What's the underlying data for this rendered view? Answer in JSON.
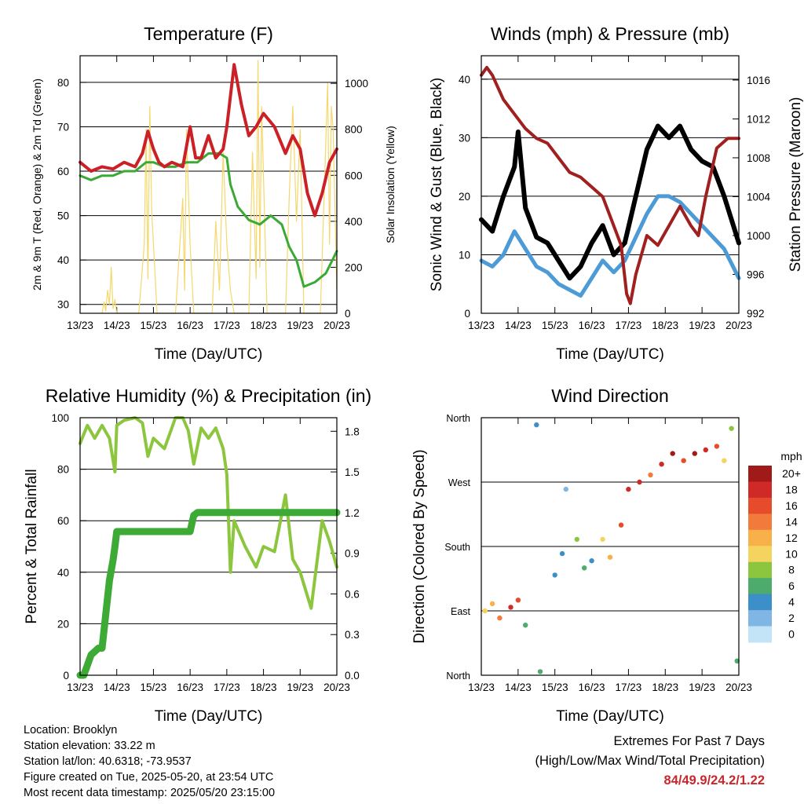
{
  "time_ticks": [
    "13/23",
    "14/23",
    "15/23",
    "16/23",
    "17/23",
    "18/23",
    "19/23",
    "20/23"
  ],
  "colors": {
    "temp": "#cc2027",
    "dew": "#3aaa35",
    "solar": "#f5d76b",
    "gust": "#000000",
    "wind": "#4c9bd6",
    "pressure": "#a01f1f",
    "rh": "#8cc63f",
    "precip": "#3daa36"
  },
  "chart_data": [
    {
      "id": "temperature",
      "type": "line",
      "title": "Temperature (F)",
      "xlabel": "Time (Day/UTC)",
      "ylabel": "2m & 9m T (Red, Orange) & 2m Td (Green)",
      "ylabel_right": "Solar Insolation (Yellow)",
      "ylim": [
        28,
        86
      ],
      "yticks": [
        30,
        40,
        50,
        60,
        70,
        80
      ],
      "ylim_right": [
        0,
        1120
      ],
      "yticks_right": [
        0,
        200,
        400,
        600,
        800,
        1000
      ],
      "series": [
        {
          "key": "temperature",
          "x": [
            0,
            0.3,
            0.6,
            0.9,
            1.2,
            1.5,
            1.7,
            1.85,
            2.0,
            2.15,
            2.3,
            2.5,
            2.8,
            3.0,
            3.15,
            3.3,
            3.5,
            3.7,
            3.9,
            4.0,
            4.2,
            4.4,
            4.6,
            4.8,
            5.0,
            5.3,
            5.6,
            5.8,
            6.0,
            6.2,
            6.4,
            6.6,
            6.8,
            7.0
          ],
          "y": [
            62,
            60,
            61,
            60.5,
            62,
            61,
            64,
            69,
            65,
            62,
            61,
            62,
            61,
            70,
            63,
            63,
            68,
            63,
            65,
            70,
            84,
            75,
            68,
            70,
            73,
            70,
            64,
            68,
            65,
            55,
            50,
            55,
            62,
            65
          ]
        },
        {
          "key": "dewpoint",
          "x": [
            0,
            0.3,
            0.6,
            0.9,
            1.2,
            1.5,
            1.8,
            2.0,
            2.3,
            2.6,
            2.9,
            3.2,
            3.5,
            3.8,
            4.0,
            4.1,
            4.3,
            4.6,
            4.9,
            5.2,
            5.5,
            5.7,
            5.9,
            6.1,
            6.4,
            6.7,
            7.0
          ],
          "y": [
            59,
            58,
            59,
            59,
            60,
            60,
            62,
            62,
            61,
            61,
            62,
            62,
            64,
            64,
            63,
            57,
            52,
            49,
            48,
            50,
            48,
            43,
            40,
            34,
            35,
            37,
            42
          ]
        },
        {
          "key": "solar",
          "axis": "right",
          "x": [
            0.6,
            0.65,
            0.7,
            0.75,
            0.8,
            0.85,
            0.9,
            0.95,
            1.0,
            1.6,
            1.75,
            1.8,
            1.85,
            1.9,
            1.95,
            2.1,
            2.6,
            2.8,
            2.85,
            2.9,
            3.0,
            3.1,
            3.6,
            3.7,
            3.8,
            3.9,
            4.0,
            4.1,
            4.2,
            4.6,
            4.7,
            4.8,
            4.85,
            4.9,
            4.95,
            5.1,
            5.6,
            5.7,
            5.8,
            5.9,
            6.0,
            6.1,
            6.55,
            6.65,
            6.75,
            6.8,
            6.85,
            6.9,
            7.0
          ],
          "y": [
            0,
            50,
            10,
            100,
            40,
            200,
            20,
            60,
            0,
            0,
            300,
            800,
            150,
            900,
            450,
            0,
            0,
            500,
            100,
            800,
            300,
            0,
            0,
            400,
            100,
            700,
            300,
            100,
            0,
            0,
            700,
            150,
            1100,
            200,
            900,
            0,
            0,
            500,
            900,
            400,
            800,
            0,
            0,
            500,
            1000,
            300,
            900,
            800,
            100
          ]
        }
      ]
    },
    {
      "id": "winds",
      "type": "line",
      "title": "Winds (mph) & Pressure (mb)",
      "xlabel": "Time (Day/UTC)",
      "ylabel": "Sonic Wind & Gust (Blue, Black)",
      "ylabel_right": "Station Pressure (Maroon)",
      "ylim": [
        0,
        44
      ],
      "yticks": [
        0,
        10,
        20,
        30,
        40
      ],
      "ylim_right": [
        992,
        1018.5
      ],
      "yticks_right": [
        992,
        996,
        1000,
        1004,
        1008,
        1012,
        1016
      ],
      "series": [
        {
          "key": "gust",
          "x": [
            0,
            0.3,
            0.6,
            0.9,
            1.0,
            1.2,
            1.5,
            1.8,
            2.1,
            2.4,
            2.7,
            3.0,
            3.3,
            3.6,
            3.9,
            4.2,
            4.5,
            4.8,
            5.1,
            5.4,
            5.7,
            6.0,
            6.3,
            6.6,
            7.0
          ],
          "y": [
            16,
            14,
            20,
            25,
            31,
            18,
            13,
            12,
            9,
            6,
            8,
            12,
            15,
            10,
            12,
            20,
            28,
            32,
            30,
            32,
            28,
            26,
            25,
            20,
            12
          ]
        },
        {
          "key": "wind",
          "x": [
            0,
            0.3,
            0.6,
            0.9,
            1.2,
            1.5,
            1.8,
            2.1,
            2.4,
            2.7,
            3.0,
            3.3,
            3.6,
            3.9,
            4.2,
            4.5,
            4.8,
            5.1,
            5.4,
            5.7,
            6.0,
            6.3,
            6.6,
            7.0
          ],
          "y": [
            9,
            8,
            10,
            14,
            11,
            8,
            7,
            5,
            4,
            3,
            6,
            9,
            7,
            9,
            13,
            17,
            20,
            20,
            19,
            17,
            15,
            13,
            11,
            6
          ]
        },
        {
          "key": "pressure",
          "axis": "right",
          "x": [
            0,
            0.15,
            0.3,
            0.6,
            0.9,
            1.2,
            1.5,
            1.8,
            2.1,
            2.4,
            2.7,
            3.0,
            3.3,
            3.6,
            3.8,
            3.95,
            4.05,
            4.2,
            4.5,
            4.8,
            5.1,
            5.4,
            5.7,
            5.9,
            6.1,
            6.4,
            6.7,
            7.0
          ],
          "y": [
            1016.5,
            1017.3,
            1016.5,
            1014,
            1012.5,
            1011,
            1010,
            1009.5,
            1008,
            1006.5,
            1006,
            1005,
            1004,
            1001,
            999,
            994,
            993,
            996,
            1000,
            999,
            1001,
            1003,
            1001,
            1000,
            1004,
            1009,
            1010,
            1010
          ]
        }
      ]
    },
    {
      "id": "humidity",
      "type": "line",
      "title": "Relative Humidity (%) & Precipitation (in)",
      "xlabel": "Time (Day/UTC)",
      "ylabel": "Percent & Total Rainfall",
      "ylim": [
        0,
        100
      ],
      "yticks": [
        0,
        20,
        40,
        60,
        80,
        100
      ],
      "ylim_right": [
        0,
        1.9
      ],
      "yticks_right": [
        "0.0",
        "0.3",
        "0.6",
        "0.9",
        "1.2",
        "1.5",
        "1.8"
      ],
      "series": [
        {
          "key": "rh",
          "x": [
            0,
            0.2,
            0.4,
            0.6,
            0.8,
            0.95,
            1.0,
            1.2,
            1.5,
            1.7,
            1.85,
            2.0,
            2.3,
            2.6,
            2.8,
            2.95,
            3.1,
            3.3,
            3.5,
            3.7,
            3.9,
            4.0,
            4.1,
            4.2,
            4.5,
            4.8,
            5.0,
            5.3,
            5.6,
            5.8,
            6.0,
            6.3,
            6.6,
            6.8,
            7.0
          ],
          "y": [
            90,
            97,
            92,
            97,
            92,
            79,
            97,
            99,
            100,
            98,
            85,
            92,
            88,
            100,
            100,
            95,
            82,
            96,
            92,
            96,
            88,
            78,
            40,
            60,
            50,
            42,
            50,
            48,
            70,
            45,
            40,
            26,
            60,
            52,
            42
          ]
        },
        {
          "key": "precip",
          "axis": "right",
          "x": [
            0,
            0.1,
            0.3,
            0.5,
            0.6,
            0.7,
            0.8,
            0.9,
            0.95,
            1.0,
            1.1,
            1.5,
            2.0,
            2.5,
            3.0,
            3.1,
            3.2,
            3.5,
            4.0,
            5.0,
            6.0,
            7.0
          ],
          "y": [
            0,
            0,
            0.15,
            0.2,
            0.2,
            0.45,
            0.7,
            0.85,
            0.95,
            1.06,
            1.06,
            1.06,
            1.06,
            1.06,
            1.06,
            1.18,
            1.2,
            1.2,
            1.2,
            1.2,
            1.2,
            1.2
          ]
        }
      ]
    },
    {
      "id": "direction",
      "type": "scatter",
      "title": "Wind Direction",
      "xlabel": "Time (Day/UTC)",
      "ylabel": "Direction (Colored By Speed)",
      "ylim": [
        0,
        360
      ],
      "yticks": [
        "North",
        "East",
        "South",
        "West",
        "North"
      ],
      "colorbar_title": "mph",
      "colorbar_labels": [
        "20+",
        "18",
        "16",
        "14",
        "12",
        "10",
        "8",
        "6",
        "4",
        "2",
        "0"
      ],
      "colorbar_colors": [
        "#a01a1a",
        "#cf2a27",
        "#e64c2c",
        "#f27a3a",
        "#f8b04a",
        "#f4d35e",
        "#8cc63f",
        "#4dab6d",
        "#3d8fc9",
        "#7fb6e3",
        "#c3e3f7"
      ],
      "points": [
        {
          "x": 0.1,
          "y": 90,
          "s": 10
        },
        {
          "x": 0.3,
          "y": 100,
          "s": 12
        },
        {
          "x": 0.5,
          "y": 80,
          "s": 14
        },
        {
          "x": 0.8,
          "y": 95,
          "s": 18
        },
        {
          "x": 1.0,
          "y": 105,
          "s": 16
        },
        {
          "x": 1.2,
          "y": 70,
          "s": 6
        },
        {
          "x": 1.5,
          "y": 350,
          "s": 4
        },
        {
          "x": 1.6,
          "y": 5,
          "s": 6
        },
        {
          "x": 2.0,
          "y": 140,
          "s": 4
        },
        {
          "x": 2.2,
          "y": 170,
          "s": 4
        },
        {
          "x": 2.3,
          "y": 260,
          "s": 2
        },
        {
          "x": 2.6,
          "y": 190,
          "s": 8
        },
        {
          "x": 2.8,
          "y": 150,
          "s": 6
        },
        {
          "x": 3.0,
          "y": 160,
          "s": 4
        },
        {
          "x": 3.3,
          "y": 190,
          "s": 10
        },
        {
          "x": 3.5,
          "y": 165,
          "s": 12
        },
        {
          "x": 3.8,
          "y": 210,
          "s": 16
        },
        {
          "x": 4.0,
          "y": 260,
          "s": 18
        },
        {
          "x": 4.3,
          "y": 270,
          "s": 18
        },
        {
          "x": 4.6,
          "y": 280,
          "s": 14
        },
        {
          "x": 4.9,
          "y": 295,
          "s": 18
        },
        {
          "x": 5.2,
          "y": 310,
          "s": 20
        },
        {
          "x": 5.5,
          "y": 300,
          "s": 16
        },
        {
          "x": 5.8,
          "y": 310,
          "s": 20
        },
        {
          "x": 6.1,
          "y": 315,
          "s": 18
        },
        {
          "x": 6.4,
          "y": 320,
          "s": 16
        },
        {
          "x": 6.6,
          "y": 300,
          "s": 10
        },
        {
          "x": 6.8,
          "y": 345,
          "s": 8
        },
        {
          "x": 6.95,
          "y": 20,
          "s": 6
        }
      ]
    }
  ],
  "info": {
    "location": "Location: Brooklyn",
    "elevation": "Station elevation: 33.22 m",
    "latlon": "Station lat/lon: 40.6318; -73.9537",
    "created": "Figure created on Tue, 2025-05-20, at 23:54 UTC",
    "recent": "Most recent data timestamp: 2025/05/20 23:15:00"
  },
  "extremes": {
    "title": "Extremes For Past 7 Days",
    "subtitle": "(High/Low/Max Wind/Total Precipitation)",
    "values": "84/49.9/24.2/1.22"
  }
}
